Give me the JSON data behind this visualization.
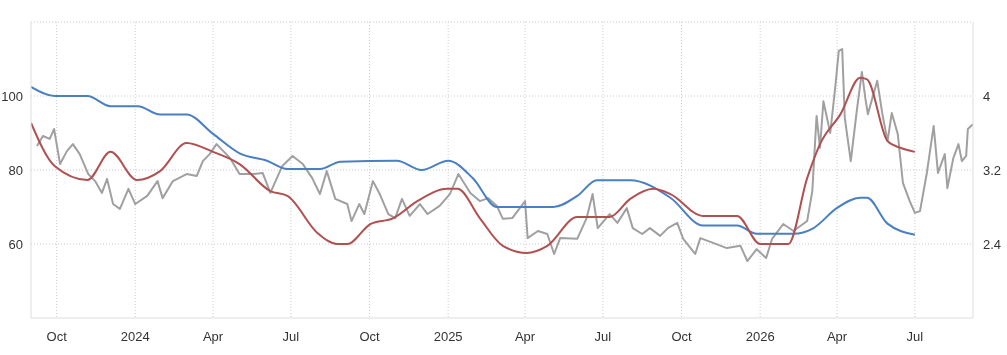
{
  "chart_data": {
    "type": "line",
    "xlim": [
      "2023-09-01",
      "2026-09-07"
    ],
    "xticks": [
      {
        "value": "2023-10-01",
        "label": "Oct"
      },
      {
        "value": "2024-01-01",
        "label": "2024"
      },
      {
        "value": "2024-04-01",
        "label": "Apr"
      },
      {
        "value": "2024-07-01",
        "label": "Jul"
      },
      {
        "value": "2024-10-01",
        "label": "Oct"
      },
      {
        "value": "2025-01-01",
        "label": "2025"
      },
      {
        "value": "2025-04-01",
        "label": "Apr"
      },
      {
        "value": "2025-07-01",
        "label": "Jul"
      },
      {
        "value": "2025-10-01",
        "label": "Oct"
      },
      {
        "value": "2026-01-01",
        "label": "2026"
      },
      {
        "value": "2026-04-01",
        "label": "Apr"
      },
      {
        "value": "2026-07-01",
        "label": "Jul"
      }
    ],
    "ylim": [
      40,
      120
    ],
    "yticks": [
      60,
      80,
      100,
      {
        "value": 120,
        "label": null
      }
    ],
    "y2lim": [
      1.6,
      4.8
    ],
    "y2ticks": [
      2.4,
      3.2,
      4
    ],
    "grid": true,
    "series": [
      {
        "color": "#a0a0a0",
        "x": [
          "2023-09-08",
          "2023-09-15",
          "2023-09-23",
          "2023-09-28",
          "2023-10-05",
          "2023-10-13",
          "2023-10-20",
          "2023-10-28",
          "2023-11-07",
          "2023-11-15",
          "2023-11-23",
          "2023-11-29",
          "2023-12-06",
          "2023-12-14",
          "2023-12-24",
          "2024-01-01",
          "2024-01-15",
          "2024-01-27",
          "2024-02-02",
          "2024-02-14",
          "2024-03-01",
          "2024-03-13",
          "2024-03-20",
          "2024-03-28",
          "2024-04-05",
          "2024-04-21",
          "2024-05-02",
          "2024-05-17",
          "2024-05-29",
          "2024-06-07",
          "2024-06-21",
          "2024-07-03",
          "2024-07-15",
          "2024-07-26",
          "2024-08-04",
          "2024-08-12",
          "2024-08-22",
          "2024-09-05",
          "2024-09-10",
          "2024-09-19",
          "2024-09-25",
          "2024-10-05",
          "2024-10-13",
          "2024-10-23",
          "2024-10-31",
          "2024-11-08",
          "2024-11-17",
          "2024-11-29",
          "2024-12-08",
          "2024-12-22",
          "2025-01-03",
          "2025-01-13",
          "2025-01-27",
          "2025-02-07",
          "2025-02-17",
          "2025-02-27",
          "2025-03-06",
          "2025-03-17",
          "2025-04-01",
          "2025-04-04",
          "2025-04-16",
          "2025-04-27",
          "2025-05-05",
          "2025-05-12",
          "2025-06-01",
          "2025-06-12",
          "2025-06-19",
          "2025-06-25",
          "2025-07-09",
          "2025-07-18",
          "2025-07-29",
          "2025-08-05",
          "2025-08-16",
          "2025-08-25",
          "2025-09-06",
          "2025-09-15",
          "2025-09-26",
          "2025-10-03",
          "2025-10-17",
          "2025-10-23",
          "2025-11-07",
          "2025-11-23",
          "2025-12-09",
          "2025-12-17",
          "2025-12-28",
          "2026-01-08",
          "2026-01-15",
          "2026-01-28",
          "2026-02-09",
          "2026-02-25",
          "2026-03-03",
          "2026-03-08",
          "2026-03-12",
          "2026-03-16",
          "2026-03-24",
          "2026-03-30",
          "2026-04-03",
          "2026-04-07",
          "2026-04-10",
          "2026-04-17",
          "2026-04-24",
          "2026-04-30",
          "2026-05-04",
          "2026-05-07",
          "2026-05-18",
          "2026-05-24",
          "2026-05-30",
          "2026-06-04",
          "2026-06-11",
          "2026-06-17",
          "2026-06-25",
          "2026-07-01",
          "2026-07-07",
          "2026-07-15",
          "2026-07-23",
          "2026-07-28",
          "2026-08-05",
          "2026-08-08",
          "2026-08-15",
          "2026-08-21",
          "2026-08-25",
          "2026-08-30",
          "2026-09-01",
          "2026-09-07"
        ],
        "values": [
          86.5,
          89.2,
          88.4,
          91.1,
          81.6,
          85.1,
          87,
          84.3,
          78.9,
          77,
          73.8,
          77.6,
          70.8,
          69.5,
          74.9,
          70.8,
          73,
          77,
          72.4,
          77,
          78.9,
          78.4,
          82.4,
          84.3,
          87,
          83.2,
          78.9,
          78.9,
          79.2,
          73.8,
          81.1,
          83.8,
          81.6,
          77.8,
          73.5,
          79.7,
          72.2,
          70.8,
          66.2,
          70.8,
          68.1,
          77,
          73.5,
          68.1,
          67,
          72.2,
          67.6,
          70.8,
          68.1,
          70.3,
          73.5,
          78.9,
          73.8,
          71.6,
          72.4,
          70.3,
          66.8,
          67,
          71.6,
          61.6,
          63.5,
          62.7,
          57.3,
          61.6,
          61.4,
          67,
          73.5,
          64.3,
          68.1,
          65.7,
          69.7,
          64.3,
          62.7,
          64.3,
          62.2,
          64.3,
          65.7,
          61.4,
          57.3,
          61.6,
          60.3,
          58.9,
          59.5,
          55.4,
          58.6,
          56.2,
          61.4,
          65.4,
          63.5,
          66.2,
          74.3,
          94.6,
          86,
          98.6,
          90,
          102.7,
          112.2,
          112.7,
          94.1,
          82.4,
          95.9,
          106.5,
          99.5,
          95.1,
          104.1,
          95.1,
          87.8,
          95.4,
          89.7,
          76.5,
          71.6,
          68.4,
          68.9,
          79.2,
          91.9,
          79.2,
          84.3,
          75.1,
          83.2,
          87,
          82.4,
          83.8,
          91.1,
          92.4
        ]
      },
      {
        "color": "#4a7fc1",
        "axis": "y2",
        "x": [
          "2023-09-01",
          "2023-09-29",
          "2023-11-06",
          "2023-12-03",
          "2024-01-04",
          "2024-01-30",
          "2024-03-01",
          "2024-04-01",
          "2024-05-02",
          "2024-06-03",
          "2024-06-27",
          "2024-08-04",
          "2024-08-28",
          "2024-11-02",
          "2024-12-01",
          "2025-01-01",
          "2025-01-30",
          "2025-02-27",
          "2025-05-04",
          "2025-06-01",
          "2025-06-24",
          "2025-08-02",
          "2025-09-18",
          "2025-10-26",
          "2025-12-05",
          "2025-12-28",
          "2026-02-09",
          "2026-03-04",
          "2026-04-01",
          "2026-04-28",
          "2026-05-06",
          "2026-05-30",
          "2026-07-01"
        ],
        "values": [
          4.1,
          4.0,
          4.0,
          3.89,
          3.89,
          3.8,
          3.8,
          3.59,
          3.38,
          3.3,
          3.21,
          3.21,
          3.29,
          3.3,
          3.2,
          3.3,
          3.11,
          2.8,
          2.8,
          2.92,
          3.09,
          3.09,
          2.9,
          2.6,
          2.6,
          2.51,
          2.51,
          2.57,
          2.79,
          2.9,
          2.9,
          2.62,
          2.5
        ]
      },
      {
        "color": "#b05050",
        "x": [
          "2023-09-01",
          "2023-09-29",
          "2023-11-06",
          "2023-12-03",
          "2024-01-03",
          "2024-01-30",
          "2024-03-01",
          "2024-04-01",
          "2024-05-02",
          "2024-06-07",
          "2024-06-27",
          "2024-08-01",
          "2024-08-24",
          "2024-09-05",
          "2024-10-02",
          "2024-10-29",
          "2024-11-26",
          "2024-12-31",
          "2025-01-12",
          "2025-02-07",
          "2025-03-06",
          "2025-04-03",
          "2025-04-27",
          "2025-06-01",
          "2025-07-09",
          "2025-08-02",
          "2025-08-29",
          "2025-09-18",
          "2025-10-26",
          "2025-12-05",
          "2026-01-01",
          "2026-02-03",
          "2026-02-25",
          "2026-03-12",
          "2026-04-05",
          "2026-04-28",
          "2026-05-06",
          "2026-05-30",
          "2026-06-14",
          "2026-07-01"
        ],
        "values": [
          92.7,
          81,
          77.3,
          84.9,
          77.3,
          79.7,
          87.3,
          84.9,
          81.6,
          74.3,
          73,
          63,
          60,
          60,
          65.4,
          67,
          71.6,
          74.9,
          74.9,
          67,
          59.5,
          57.6,
          59.5,
          67.3,
          67.3,
          72.2,
          74.9,
          73.5,
          67.6,
          67.6,
          60,
          60,
          77.8,
          87,
          95.1,
          104.9,
          104.5,
          87.8,
          86,
          84.9
        ]
      }
    ]
  }
}
